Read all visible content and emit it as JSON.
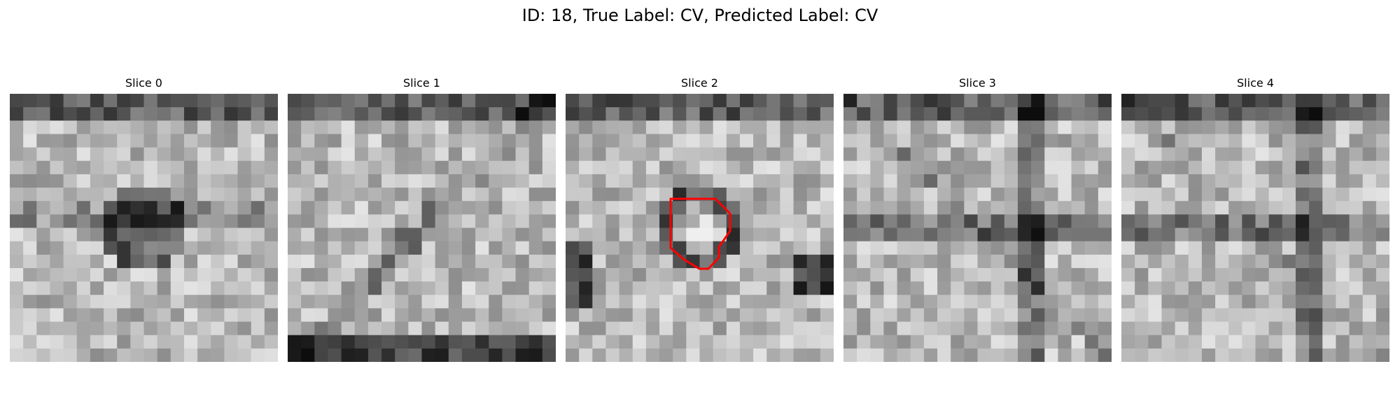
{
  "figure": {
    "title": "ID: 18, True Label: CV, Predicted Label: CV"
  },
  "slices": [
    {
      "label": "Slice 0",
      "seed": 11,
      "theme": "star",
      "contour": false
    },
    {
      "label": "Slice 1",
      "seed": 23,
      "theme": "bright",
      "contour": false
    },
    {
      "label": "Slice 2",
      "seed": 37,
      "theme": "ring",
      "contour": true
    },
    {
      "label": "Slice 3",
      "seed": 41,
      "theme": "web",
      "contour": false
    },
    {
      "label": "Slice 4",
      "seed": 43,
      "theme": "web",
      "contour": false
    }
  ],
  "colors": {
    "contour": "#ff0000",
    "colormap": "gray"
  }
}
